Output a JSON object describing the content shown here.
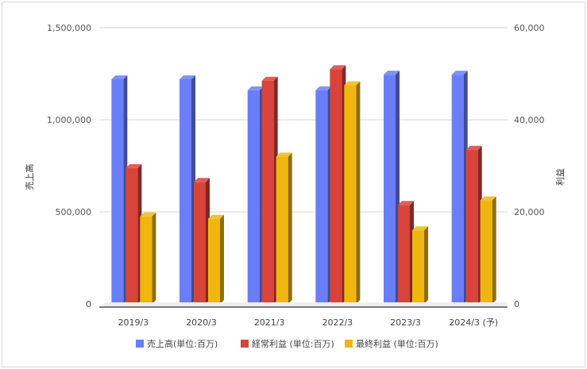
{
  "chart_data": {
    "type": "bar",
    "categories": [
      "2019/3",
      "2020/3",
      "2021/3",
      "2022/3",
      "2023/3",
      "2024/3 (予)"
    ],
    "series": [
      {
        "name": "売上高(単位:百万)",
        "axis": "left",
        "color": "#6a7ff7",
        "values": [
          1220000,
          1220000,
          1160000,
          1160000,
          1245000,
          1245000
        ]
      },
      {
        "name": "経常利益 (単位:百万)",
        "axis": "right",
        "color": "#d8433a",
        "values": [
          29500,
          26500,
          48500,
          51000,
          21500,
          33500
        ]
      },
      {
        "name": "最終利益 (単位:百万)",
        "axis": "right",
        "color": "#f0b610",
        "values": [
          19000,
          18500,
          32000,
          47500,
          16000,
          22500
        ]
      }
    ],
    "y_left": {
      "label": "売上高",
      "min": 0,
      "max": 1500000,
      "ticks": [
        "0",
        "500,000",
        "1,000,000",
        "1,500,000"
      ],
      "tick_values": [
        0,
        500000,
        1000000,
        1500000
      ]
    },
    "y_right": {
      "label": "利益",
      "min": 0,
      "max": 60000,
      "ticks": [
        "0",
        "20,000",
        "40,000",
        "60,000"
      ],
      "tick_values": [
        0,
        20000,
        40000,
        60000
      ]
    },
    "grid": true,
    "legend_position": "bottom",
    "style": "3d-bar"
  }
}
